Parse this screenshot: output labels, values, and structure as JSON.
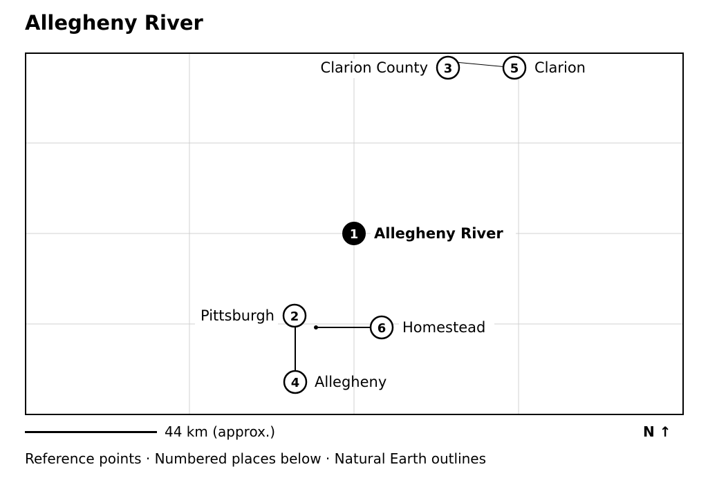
{
  "title": "Allegheny River",
  "places": [
    {
      "number": "1",
      "name": "Allegheny River",
      "primary": true
    },
    {
      "number": "2",
      "name": "Pittsburgh",
      "primary": false
    },
    {
      "number": "3",
      "name": "Clarion County",
      "primary": false
    },
    {
      "number": "4",
      "name": "Allegheny",
      "primary": false
    },
    {
      "number": "5",
      "name": "Clarion",
      "primary": false
    },
    {
      "number": "6",
      "name": "Homestead",
      "primary": false
    }
  ],
  "scale": {
    "label": "44 km (approx.)"
  },
  "north": {
    "label": "N ↑"
  },
  "footer": "Reference points · Numbered places below · Natural Earth outlines",
  "colors": {
    "primary_marker": "#000000",
    "marker_outline": "#000000",
    "grid": "#d0d0d0",
    "frame": "#000000"
  }
}
